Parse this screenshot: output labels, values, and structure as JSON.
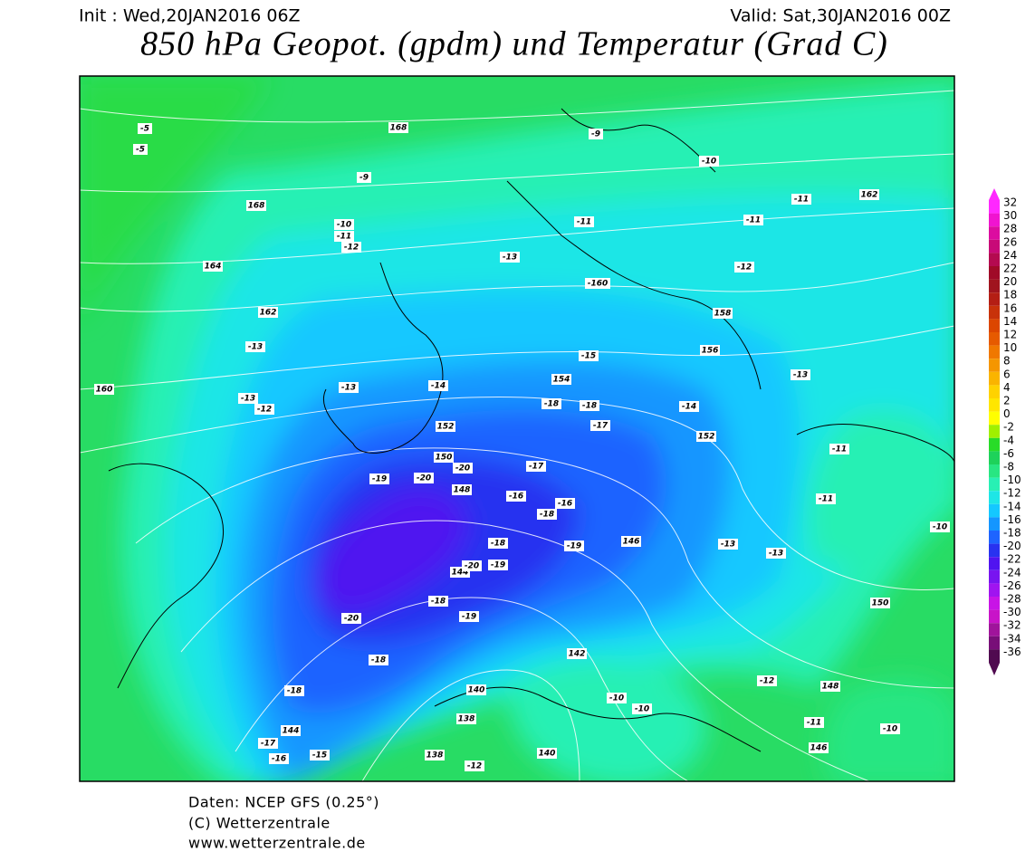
{
  "header": {
    "init": "Init : Wed,20JAN2016 06Z",
    "valid": "Valid: Sat,30JAN2016 00Z",
    "title": "850 hPa Geopot. (gpdm) und Temperatur (Grad C)"
  },
  "colorbar": {
    "levels": [
      32,
      30,
      28,
      26,
      24,
      22,
      20,
      18,
      16,
      14,
      12,
      10,
      8,
      6,
      4,
      2,
      0,
      -2,
      -4,
      -6,
      -8,
      -10,
      -12,
      -14,
      -16,
      -18,
      -20,
      -22,
      -24,
      -26,
      -28,
      -30,
      -32,
      -34,
      -36
    ],
    "colors": [
      "#ff28ff",
      "#f014d0",
      "#dc0ca0",
      "#c80a78",
      "#b40a50",
      "#a00a28",
      "#a0141e",
      "#b41e14",
      "#c8320a",
      "#dc4600",
      "#e65a00",
      "#f07800",
      "#f59600",
      "#fab400",
      "#ffd200",
      "#ffe600",
      "#ffff00",
      "#a0f000",
      "#28dc28",
      "#1ed25a",
      "#28e682",
      "#28f0b4",
      "#1ee6e6",
      "#14c8ff",
      "#1496ff",
      "#1e64ff",
      "#2832f0",
      "#5014f0",
      "#7814f0",
      "#a014f0",
      "#c814e6",
      "#c814c8",
      "#a0149b",
      "#780f78",
      "#500a50"
    ]
  },
  "map_labels": [
    "-5",
    "-5",
    "168",
    "-9",
    "-9",
    "-10",
    "168",
    "-10",
    "-11",
    "-12",
    "-11",
    "-11",
    "162",
    "-11",
    "164",
    "-13",
    "-12",
    "-160",
    "162",
    "158",
    "-13",
    "156",
    "-15",
    "160",
    "-13",
    "-13",
    "-12",
    "-14",
    "154",
    "-18",
    "-18",
    "-14",
    "152",
    "-17",
    "152",
    "150",
    "-20",
    "-19",
    "-20",
    "-17",
    "148",
    "-16",
    "-16",
    "-18",
    "146",
    "-18",
    "-19",
    "144",
    "-20",
    "-19",
    "-20",
    "-18",
    "-19",
    "-18",
    "-18",
    "140",
    "138",
    "144",
    "-17",
    "-16",
    "-15",
    "138",
    "-12",
    "140",
    "-10",
    "-10",
    "142",
    "150",
    "-11",
    "-10",
    "-11",
    "-13",
    "-13",
    "-13",
    "148",
    "-11",
    "146",
    "-10",
    "-12"
  ],
  "footer": [
    "Daten: NCEP GFS (0.25°)",
    "(C) Wetterzentrale",
    "www.wetterzentrale.de"
  ]
}
